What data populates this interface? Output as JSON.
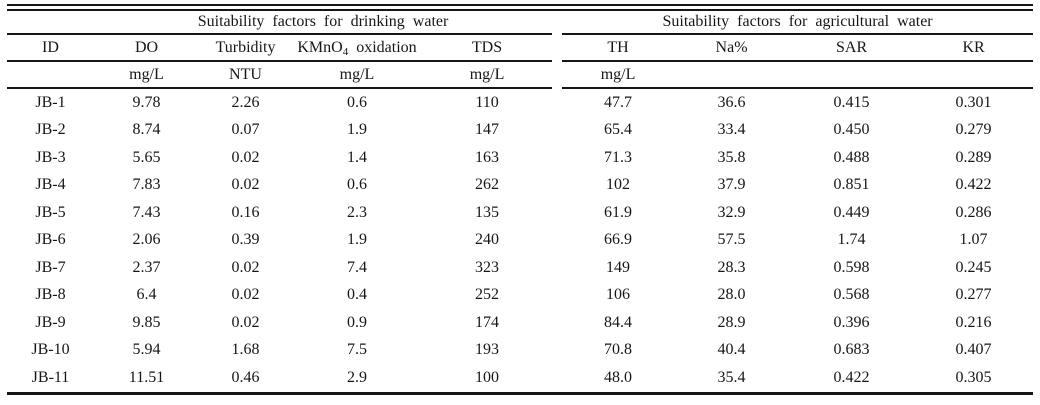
{
  "table": {
    "group_headers": {
      "drinking": "Suitability factors for drinking water",
      "agricultural": "Suitability factors for agricultural water"
    },
    "columns": {
      "id": "ID",
      "do": "DO",
      "turbidity": "Turbidity",
      "kmno4_pre": "KMnO",
      "kmno4_sub": "4",
      "kmno4_post": " oxidation",
      "tds": "TDS",
      "th": "TH",
      "na_pct": "Na%",
      "sar": "SAR",
      "kr": "KR"
    },
    "units": {
      "do": "mg/L",
      "turbidity": "NTU",
      "kmno4": "mg/L",
      "tds": "mg/L",
      "th": "mg/L"
    },
    "rows": [
      [
        "JB-1",
        "9.78",
        "2.26",
        "0.6",
        "110",
        "47.7",
        "36.6",
        "0.415",
        "0.301"
      ],
      [
        "JB-2",
        "8.74",
        "0.07",
        "1.9",
        "147",
        "65.4",
        "33.4",
        "0.450",
        "0.279"
      ],
      [
        "JB-3",
        "5.65",
        "0.02",
        "1.4",
        "163",
        "71.3",
        "35.8",
        "0.488",
        "0.289"
      ],
      [
        "JB-4",
        "7.83",
        "0.02",
        "0.6",
        "262",
        "102",
        "37.9",
        "0.851",
        "0.422"
      ],
      [
        "JB-5",
        "7.43",
        "0.16",
        "2.3",
        "135",
        "61.9",
        "32.9",
        "0.449",
        "0.286"
      ],
      [
        "JB-6",
        "2.06",
        "0.39",
        "1.9",
        "240",
        "66.9",
        "57.5",
        "1.74",
        "1.07"
      ],
      [
        "JB-7",
        "2.37",
        "0.02",
        "7.4",
        "323",
        "149",
        "28.3",
        "0.598",
        "0.245"
      ],
      [
        "JB-8",
        "6.4",
        "0.02",
        "0.4",
        "252",
        "106",
        "28.0",
        "0.568",
        "0.277"
      ],
      [
        "JB-9",
        "9.85",
        "0.02",
        "0.9",
        "174",
        "84.4",
        "28.9",
        "0.396",
        "0.216"
      ],
      [
        "JB-10",
        "5.94",
        "1.68",
        "7.5",
        "193",
        "70.8",
        "40.4",
        "0.683",
        "0.407"
      ],
      [
        "JB-11",
        "11.51",
        "0.46",
        "2.9",
        "100",
        "48.0",
        "35.4",
        "0.422",
        "0.305"
      ]
    ]
  }
}
